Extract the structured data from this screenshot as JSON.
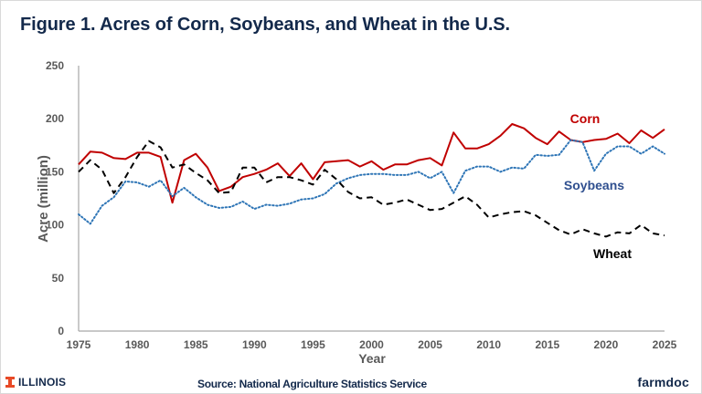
{
  "title": "Figure 1. Acres of Corn, Soybeans, and Wheat in the U.S.",
  "footer": {
    "left_logo": "ILLINOIS",
    "source": "Source: National Agriculture Statistics Service",
    "right_logo": "farmdoc"
  },
  "colors": {
    "title": "#13294b",
    "corn": "#c00000",
    "soybeans": "#2e75b6",
    "soybeans_label": "#2f4f8f",
    "wheat": "#000000",
    "axis_text": "#595959",
    "illinois_orange": "#e84a27"
  },
  "chart_data": {
    "type": "line",
    "title": "Figure 1. Acres of Corn, Soybeans, and Wheat in the U.S.",
    "xlabel": "Year",
    "ylabel": "Acre (million)",
    "xlim": [
      1975,
      2025
    ],
    "ylim": [
      0,
      250
    ],
    "xticks": [
      "1975",
      "1980",
      "1985",
      "1990",
      "1995",
      "2000",
      "2005",
      "2010",
      "2015",
      "2020",
      "2025"
    ],
    "yticks": [
      "0",
      "50",
      "100",
      "150",
      "200",
      "250"
    ],
    "grid": false,
    "legend": "inline labels near series (right side)",
    "x": [
      1975,
      1976,
      1977,
      1978,
      1979,
      1980,
      1981,
      1982,
      1983,
      1984,
      1985,
      1986,
      1987,
      1988,
      1989,
      1990,
      1991,
      1992,
      1993,
      1994,
      1995,
      1996,
      1997,
      1998,
      1999,
      2000,
      2001,
      2002,
      2003,
      2004,
      2005,
      2006,
      2007,
      2008,
      2009,
      2010,
      2011,
      2012,
      2013,
      2014,
      2015,
      2016,
      2017,
      2018,
      2019,
      2020,
      2021,
      2022,
      2023,
      2024,
      2025
    ],
    "series": [
      {
        "name": "Corn",
        "style": "solid",
        "values": [
          157,
          169,
          168,
          163,
          162,
          168,
          168,
          164,
          121,
          161,
          167,
          154,
          132,
          136,
          145,
          148,
          152,
          158,
          146,
          158,
          143,
          159,
          160,
          161,
          155,
          160,
          152,
          157,
          157,
          161,
          163,
          156,
          187,
          172,
          172,
          176,
          184,
          195,
          191,
          182,
          176,
          188,
          180,
          178,
          180,
          181,
          186,
          177,
          189,
          182,
          190
        ]
      },
      {
        "name": "Soybeans",
        "style": "dotted",
        "values": [
          110,
          101,
          118,
          126,
          141,
          140,
          136,
          142,
          127,
          135,
          126,
          119,
          116,
          117,
          122,
          115,
          119,
          118,
          120,
          124,
          125,
          129,
          139,
          144,
          147,
          148,
          148,
          147,
          147,
          150,
          144,
          150,
          130,
          151,
          155,
          155,
          150,
          154,
          153,
          166,
          165,
          166,
          180,
          178,
          151,
          167,
          174,
          174,
          167,
          174,
          167
        ]
      },
      {
        "name": "Wheat",
        "style": "dashed",
        "values": [
          150,
          161,
          152,
          130,
          145,
          164,
          179,
          173,
          154,
          157,
          149,
          142,
          130,
          131,
          154,
          154,
          140,
          145,
          145,
          142,
          138,
          152,
          143,
          131,
          125,
          126,
          119,
          121,
          124,
          119,
          114,
          115,
          121,
          127,
          119,
          107,
          110,
          112,
          113,
          109,
          102,
          95,
          91,
          96,
          92,
          89,
          93,
          92,
          100,
          92,
          90
        ]
      }
    ],
    "annotations": [
      {
        "text": "Corn",
        "series": "Corn"
      },
      {
        "text": "Soybeans",
        "series": "Soybeans"
      },
      {
        "text": "Wheat",
        "series": "Wheat"
      }
    ]
  }
}
